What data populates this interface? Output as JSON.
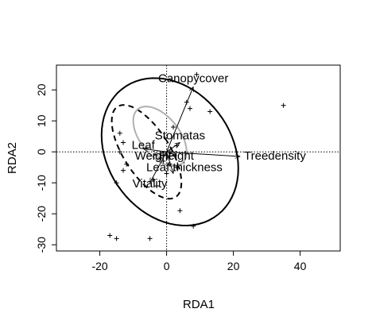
{
  "chart_data": {
    "type": "scatter",
    "title": "",
    "xlabel": "RDA1",
    "ylabel": "RDA2",
    "xlim": [
      -33,
      52
    ],
    "ylim": [
      -32,
      28
    ],
    "xticks": [
      -20,
      0,
      20,
      40
    ],
    "yticks": [
      -30,
      -20,
      -10,
      0,
      10,
      20
    ],
    "grid": false,
    "reference_lines": {
      "x": 0,
      "y": 0,
      "style": "dotted"
    },
    "points": [
      [
        9,
        25
      ],
      [
        6,
        16
      ],
      [
        7,
        14
      ],
      [
        13,
        13
      ],
      [
        35,
        15
      ],
      [
        2,
        8
      ],
      [
        -14,
        6
      ],
      [
        -13,
        3
      ],
      [
        -14,
        0
      ],
      [
        -12,
        -4
      ],
      [
        -13,
        -6
      ],
      [
        -15,
        -10
      ],
      [
        -2,
        -2
      ],
      [
        -1,
        -3
      ],
      [
        1,
        -4
      ],
      [
        3,
        -5
      ],
      [
        0,
        -7
      ],
      [
        -4,
        -9
      ],
      [
        -3,
        -11
      ],
      [
        4,
        -19
      ],
      [
        8,
        -24
      ],
      [
        -17,
        -27
      ],
      [
        -15,
        -28
      ],
      [
        -5,
        -28
      ],
      [
        1,
        0
      ],
      [
        3,
        2
      ]
    ],
    "vectors": [
      {
        "label": "Canopycover",
        "x": 8,
        "y": 21
      },
      {
        "label": "Treedensity",
        "x": 22,
        "y": -1.5
      },
      {
        "label": "Stomatas",
        "x": 4,
        "y": 3
      },
      {
        "label": "Leaf",
        "x": -7,
        "y": 1
      },
      {
        "label": "Weight",
        "x": -4,
        "y": -1
      },
      {
        "label": "Height",
        "x": 3,
        "y": -1
      },
      {
        "label": "Leaf thickness",
        "x": 2,
        "y": -7
      },
      {
        "label": "Vitality",
        "x": -5,
        "y": -10
      }
    ],
    "ellipses": [
      {
        "cx": 1,
        "cy": 0,
        "rx": 19,
        "ry": 25,
        "angle": 28,
        "color": "#000000",
        "dash": "none"
      },
      {
        "cx": -6,
        "cy": 0,
        "rx": 7,
        "ry": 17,
        "angle": 30,
        "color": "#000000",
        "dash": "dashed"
      },
      {
        "cx": -2,
        "cy": 5,
        "rx": 6,
        "ry": 11,
        "angle": 35,
        "color": "#b0b0b0",
        "dash": "none"
      }
    ]
  }
}
